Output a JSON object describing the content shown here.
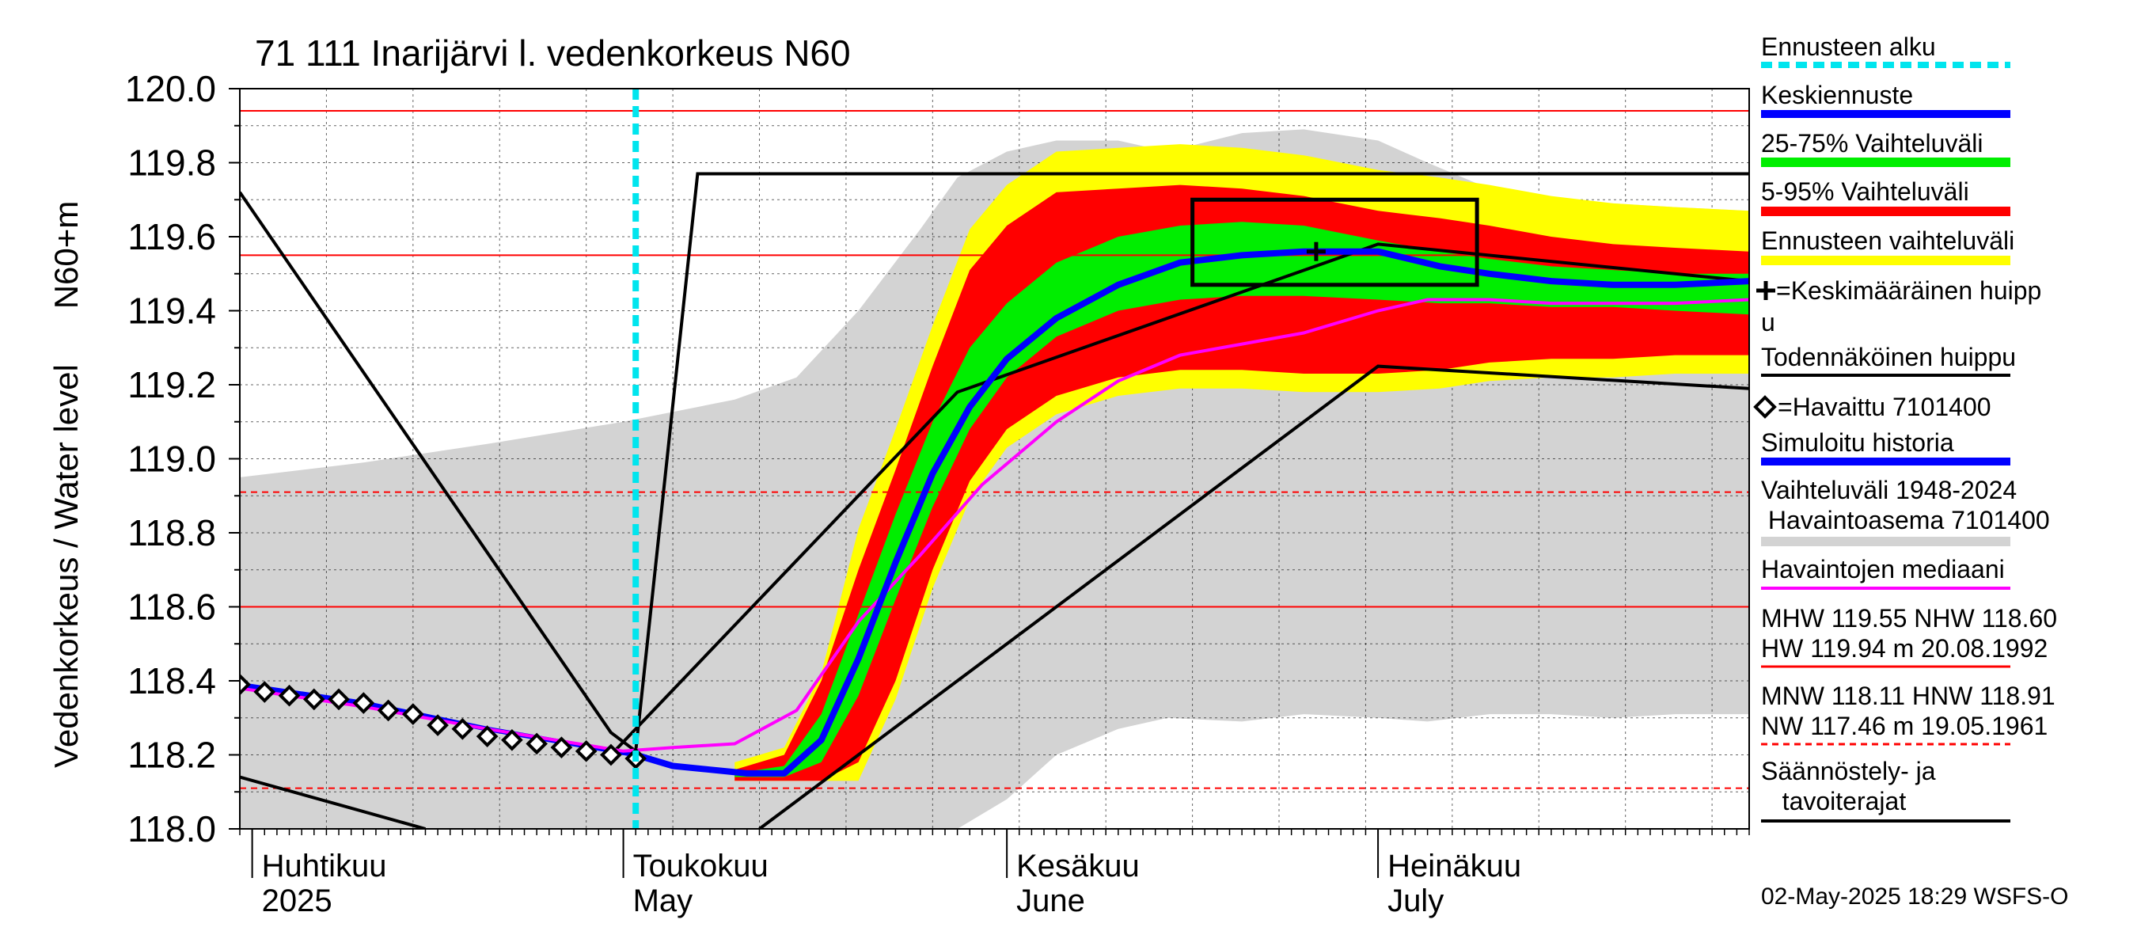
{
  "chart_data": {
    "type": "line",
    "title": "71 111 Inarijärvi l. vedenkorkeus N60",
    "ylabel_line1": "N60+m",
    "ylabel_line2": "Vedenkorkeus / Water level",
    "ylim": [
      118.0,
      120.0
    ],
    "y_ticks": [
      "118.0",
      "118.2",
      "118.4",
      "118.6",
      "118.8",
      "119.0",
      "119.2",
      "119.4",
      "119.6",
      "119.8",
      "120.0"
    ],
    "x_start": "2025-03-31",
    "x_end": "2025-07-31",
    "month_labels": [
      {
        "date": "2025-04-01",
        "fi": "Huhtikuu",
        "en": "2025"
      },
      {
        "date": "2025-05-01",
        "fi": "Toukokuu",
        "en": "May"
      },
      {
        "date": "2025-06-01",
        "fi": "Kesäkuu",
        "en": "June"
      },
      {
        "date": "2025-07-01",
        "fi": "Heinäkuu",
        "en": "July"
      }
    ],
    "forecast_start": "2025-05-02",
    "timestamp": "02-May-2025 18:29 WSFS-O",
    "reference_lines": [
      {
        "name": "HW",
        "value": 119.94,
        "style": "solid"
      },
      {
        "name": "MHW",
        "value": 119.55,
        "style": "solid"
      },
      {
        "name": "NHW",
        "value": 118.6,
        "style": "solid"
      },
      {
        "name": "HNW",
        "value": 118.91,
        "style": "dashed"
      },
      {
        "name": "MNW",
        "value": 118.11,
        "style": "dashed"
      }
    ],
    "history_band": {
      "x": [
        "2025-03-31",
        "2025-04-10",
        "2025-04-20",
        "2025-05-01",
        "2025-05-10",
        "2025-05-15",
        "2025-05-20",
        "2025-05-25",
        "2025-05-28",
        "2025-06-01",
        "2025-06-05",
        "2025-06-10",
        "2025-06-14",
        "2025-06-20",
        "2025-06-25",
        "2025-07-01",
        "2025-07-05",
        "2025-07-10",
        "2025-07-15",
        "2025-07-20",
        "2025-07-25",
        "2025-07-31"
      ],
      "high": [
        118.95,
        118.99,
        119.04,
        119.1,
        119.16,
        119.22,
        119.4,
        119.62,
        119.76,
        119.83,
        119.86,
        119.86,
        119.83,
        119.88,
        119.89,
        119.86,
        119.8,
        119.73,
        119.7,
        119.69,
        119.68,
        119.67
      ],
      "low": [
        118.0,
        118.0,
        118.0,
        118.0,
        118.0,
        118.0,
        118.0,
        118.0,
        118.0,
        118.08,
        118.2,
        118.27,
        118.3,
        118.29,
        118.31,
        118.3,
        118.29,
        118.31,
        118.31,
        118.3,
        118.31,
        118.31
      ]
    },
    "band_5_95": {
      "x": [
        "2025-05-10",
        "2025-05-14",
        "2025-05-17",
        "2025-05-20",
        "2025-05-23",
        "2025-05-26",
        "2025-05-29",
        "2025-06-01",
        "2025-06-05",
        "2025-06-10",
        "2025-06-15",
        "2025-06-20",
        "2025-06-25",
        "2025-07-01",
        "2025-07-06",
        "2025-07-10",
        "2025-07-15",
        "2025-07-20",
        "2025-07-25",
        "2025-07-31"
      ],
      "high": [
        118.16,
        118.2,
        118.4,
        118.7,
        118.97,
        119.25,
        119.51,
        119.63,
        119.72,
        119.73,
        119.74,
        119.73,
        119.71,
        119.67,
        119.65,
        119.63,
        119.6,
        119.58,
        119.57,
        119.56
      ],
      "low": [
        118.13,
        118.13,
        118.13,
        118.18,
        118.4,
        118.7,
        118.94,
        119.08,
        119.17,
        119.22,
        119.24,
        119.24,
        119.23,
        119.23,
        119.24,
        119.26,
        119.27,
        119.27,
        119.28,
        119.28
      ]
    },
    "band_25_75": {
      "x": [
        "2025-05-10",
        "2025-05-14",
        "2025-05-17",
        "2025-05-20",
        "2025-05-23",
        "2025-05-26",
        "2025-05-29",
        "2025-06-01",
        "2025-06-05",
        "2025-06-10",
        "2025-06-15",
        "2025-06-20",
        "2025-06-25",
        "2025-07-01",
        "2025-07-06",
        "2025-07-10",
        "2025-07-15",
        "2025-07-20",
        "2025-07-25",
        "2025-07-31"
      ],
      "high": [
        118.15,
        118.17,
        118.31,
        118.58,
        118.85,
        119.1,
        119.3,
        119.42,
        119.53,
        119.6,
        119.63,
        119.64,
        119.63,
        119.59,
        119.56,
        119.54,
        119.52,
        119.51,
        119.5,
        119.5
      ],
      "low": [
        118.14,
        118.14,
        118.18,
        118.36,
        118.62,
        118.87,
        119.08,
        119.22,
        119.33,
        119.4,
        119.43,
        119.44,
        119.44,
        119.43,
        119.42,
        119.42,
        119.41,
        119.41,
        119.4,
        119.39
      ]
    },
    "mean_forecast": {
      "x": [
        "2025-05-02",
        "2025-05-05",
        "2025-05-08",
        "2025-05-11",
        "2025-05-14",
        "2025-05-17",
        "2025-05-20",
        "2025-05-23",
        "2025-05-26",
        "2025-05-29",
        "2025-06-01",
        "2025-06-05",
        "2025-06-10",
        "2025-06-15",
        "2025-06-20",
        "2025-06-25",
        "2025-07-01",
        "2025-07-06",
        "2025-07-10",
        "2025-07-15",
        "2025-07-20",
        "2025-07-25",
        "2025-07-31"
      ],
      "y": [
        118.2,
        118.17,
        118.16,
        118.15,
        118.15,
        118.24,
        118.46,
        118.72,
        118.96,
        119.14,
        119.27,
        119.38,
        119.47,
        119.53,
        119.55,
        119.56,
        119.56,
        119.52,
        119.5,
        119.48,
        119.47,
        119.47,
        119.48
      ]
    },
    "median": {
      "x": [
        "2025-03-31",
        "2025-04-10",
        "2025-04-20",
        "2025-05-01",
        "2025-05-05",
        "2025-05-10",
        "2025-05-15",
        "2025-05-20",
        "2025-05-25",
        "2025-05-30",
        "2025-06-05",
        "2025-06-10",
        "2025-06-15",
        "2025-06-20",
        "2025-06-25",
        "2025-07-01",
        "2025-07-05",
        "2025-07-10",
        "2025-07-15",
        "2025-07-20",
        "2025-07-25",
        "2025-07-31"
      ],
      "y": [
        118.38,
        118.33,
        118.27,
        118.21,
        118.22,
        118.23,
        118.32,
        118.56,
        118.74,
        118.93,
        119.1,
        119.21,
        119.28,
        119.31,
        119.34,
        119.4,
        119.43,
        119.43,
        119.42,
        119.42,
        119.42,
        119.43
      ]
    },
    "observed": {
      "x": [
        "2025-03-31",
        "2025-04-02",
        "2025-04-04",
        "2025-04-06",
        "2025-04-08",
        "2025-04-10",
        "2025-04-12",
        "2025-04-14",
        "2025-04-16",
        "2025-04-18",
        "2025-04-20",
        "2025-04-22",
        "2025-04-24",
        "2025-04-26",
        "2025-04-28",
        "2025-04-30",
        "2025-05-02"
      ],
      "y": [
        118.39,
        118.37,
        118.36,
        118.35,
        118.35,
        118.34,
        118.32,
        118.31,
        118.28,
        118.27,
        118.25,
        118.24,
        118.23,
        118.22,
        118.21,
        118.2,
        118.19
      ]
    },
    "simulated_history": {
      "x": [
        "2025-03-31",
        "2025-04-10",
        "2025-04-20",
        "2025-05-02"
      ],
      "y": [
        118.39,
        118.34,
        118.27,
        118.2
      ]
    },
    "regulation_limits": [
      {
        "x": [
          "2025-03-31",
          "2025-04-30",
          "2025-05-02",
          "2025-05-07",
          "2025-07-31"
        ],
        "y": [
          119.72,
          118.26,
          118.21,
          119.77,
          119.77
        ]
      },
      {
        "x": [
          "2025-03-31",
          "2025-04-15"
        ],
        "y": [
          118.14,
          118.0
        ]
      },
      {
        "x": [
          "2025-04-30",
          "2025-05-28",
          "2025-07-01",
          "2025-07-31"
        ],
        "y": [
          118.2,
          119.18,
          119.58,
          119.48
        ]
      },
      {
        "x": [
          "2025-05-12",
          "2025-07-01",
          "2025-07-31"
        ],
        "y": [
          118.0,
          119.25,
          119.19
        ]
      }
    ],
    "probable_peak_box": {
      "x": [
        "2025-06-16",
        "2025-07-09"
      ],
      "y": [
        119.47,
        119.7
      ]
    },
    "mean_peak": {
      "x": "2025-06-26",
      "y": 119.56
    },
    "legend": {
      "forecast_start": "Ennusteen alku",
      "mean_forecast": "Keskiennuste",
      "band_25_75": "25-75% Vaihteluväli",
      "band_5_95": "5-95% Vaihteluväli",
      "forecast_range": "Ennusteen vaihteluväli",
      "mean_peak_l1": "=Keskimääräinen huipp",
      "mean_peak_l2": "u",
      "probable_peak": "Todennäköinen huippu",
      "observed": "=Havaittu 7101400",
      "simulated": "Simuloitu historia",
      "range_l1": "Vaihteluväli 1948-2024",
      "range_l2": " Havaintoasema 7101400",
      "median": "Havaintojen mediaani",
      "hw_l1": "MHW 119.55 NHW 118.60",
      "hw_l2": "HW 119.94 m 20.08.1992",
      "nw_l1": "MNW 118.11 HNW 118.91",
      "nw_l2": "NW 117.46 m 19.05.1961",
      "reg_l1": "Säännöstely- ja",
      "reg_l2": "   tavoiterajat"
    },
    "colors": {
      "history_band": "#d3d3d3",
      "forecast_range": "#ffff00",
      "band_5_95": "#ff0000",
      "band_25_75": "#00ee00",
      "mean_forecast": "#0000ff",
      "median": "#ff00ff",
      "forecast_start": "#00e5ee",
      "reference": "#ff0000"
    }
  }
}
